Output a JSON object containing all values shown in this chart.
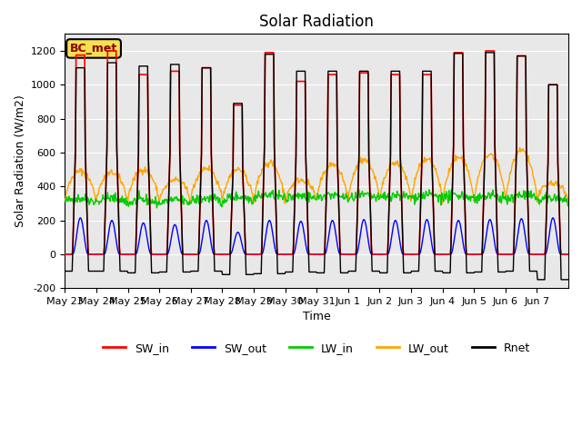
{
  "title": "Solar Radiation",
  "xlabel": "Time",
  "ylabel": "Solar Radiation (W/m2)",
  "annotation": "BC_met",
  "ylim": [
    -200,
    1300
  ],
  "yticks": [
    -200,
    0,
    200,
    400,
    600,
    800,
    1000,
    1200
  ],
  "x_tick_labels": [
    "May 23",
    "May 24",
    "May 25",
    "May 26",
    "May 27",
    "May 28",
    "May 29",
    "May 30",
    "May 31",
    "Jun 1",
    "Jun 2",
    "Jun 3",
    "Jun 4",
    "Jun 5",
    "Jun 6",
    "Jun 7"
  ],
  "legend_entries": [
    "SW_in",
    "SW_out",
    "LW_in",
    "LW_out",
    "Rnet"
  ],
  "colors": {
    "SW_in": "#ff0000",
    "SW_out": "#0000ff",
    "LW_in": "#00cc00",
    "LW_out": "#ffa500",
    "Rnet": "#000000"
  },
  "plot_bg": "#ffffff",
  "axes_bg": "#e8e8e8",
  "n_days": 16,
  "points_per_day": 48,
  "sw_peaks": [
    1175,
    1200,
    1060,
    1080,
    1100,
    880,
    1190,
    1020,
    1060,
    1070,
    1060,
    1060,
    1190,
    1200,
    1170,
    1000
  ],
  "sw_out_peaks": [
    215,
    200,
    185,
    175,
    200,
    130,
    200,
    195,
    200,
    205,
    200,
    205,
    200,
    205,
    210,
    215
  ],
  "lw_in_base": [
    310,
    310,
    300,
    300,
    310,
    320,
    330,
    325,
    330,
    325,
    330,
    330,
    330,
    325,
    330,
    310
  ],
  "lw_out_peaks": [
    490,
    480,
    500,
    440,
    510,
    500,
    540,
    440,
    530,
    560,
    540,
    560,
    570,
    590,
    610,
    420
  ],
  "rnet_peaks": [
    1100,
    1130,
    1110,
    1120,
    1100,
    890,
    1180,
    1080,
    1080,
    1080,
    1080,
    1080,
    1185,
    1190,
    1170,
    1000
  ],
  "rnet_night": [
    -100,
    -100,
    -110,
    -105,
    -100,
    -120,
    -115,
    -105,
    -110,
    -100,
    -110,
    -100,
    -110,
    -105,
    -100,
    -150
  ]
}
